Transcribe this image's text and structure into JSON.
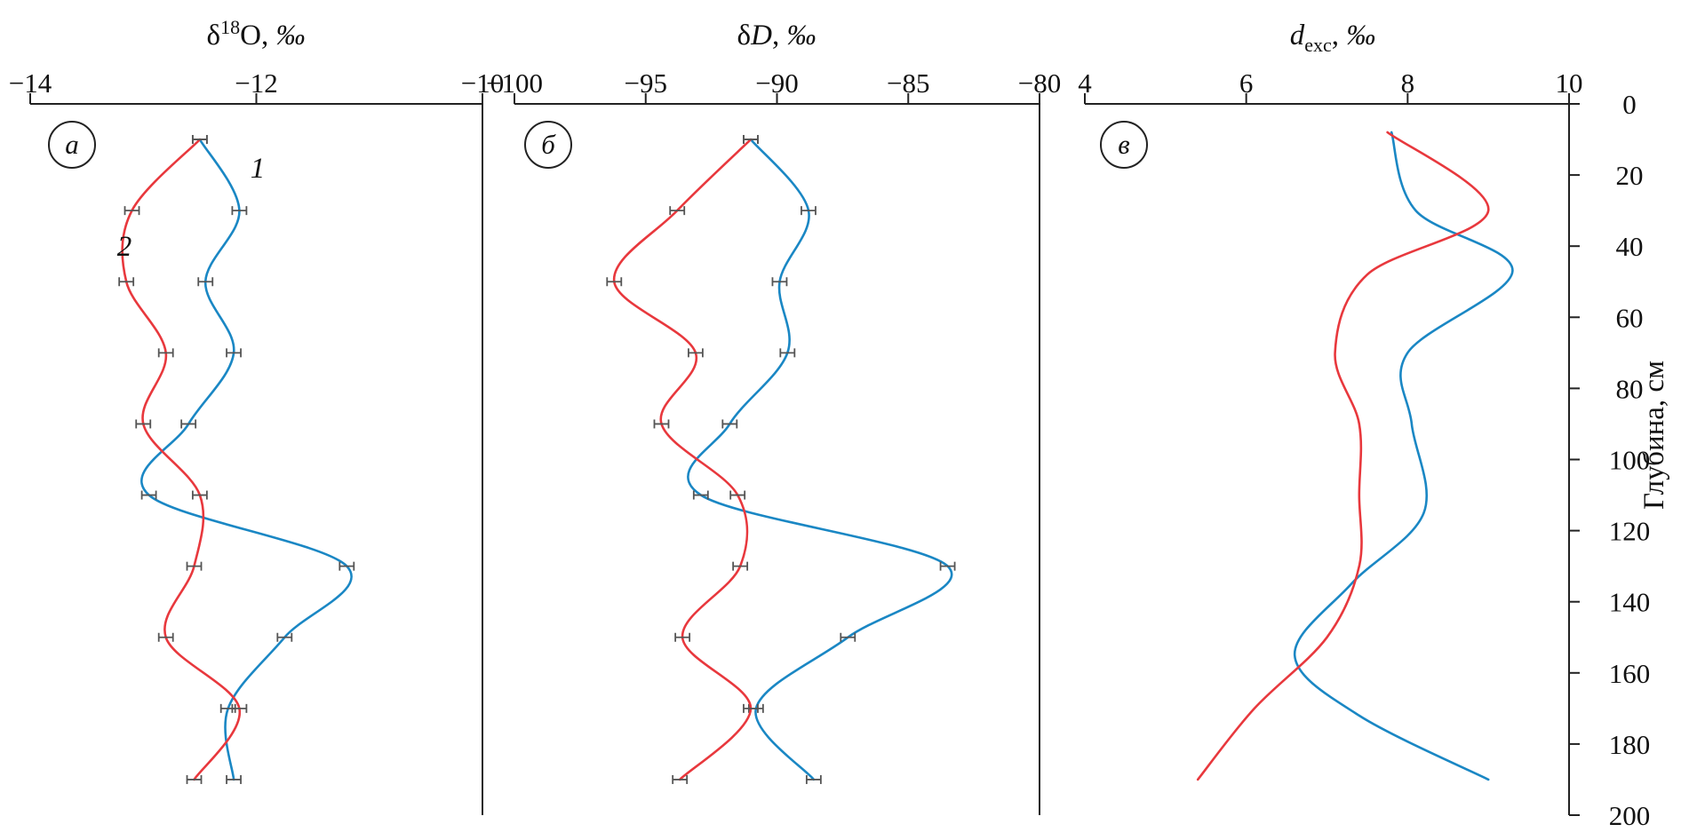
{
  "chart_data": [
    {
      "type": "line",
      "panel_label": "а",
      "xlabel_main": "δ",
      "xlabel_sup": "18",
      "xlabel_rest": "O, ",
      "xlabel_unit": "‰",
      "xlim": [
        -14,
        -10
      ],
      "xticks": [
        -14,
        -12,
        -10
      ],
      "xtick_labels": [
        "−14",
        "−12",
        "−10"
      ],
      "ylim": [
        0,
        200
      ],
      "grid": false,
      "series": [
        {
          "tag": "1",
          "color": "#1a87c4",
          "errorbars": true,
          "points": [
            {
              "x": -12.5,
              "y": 10
            },
            {
              "x": -12.15,
              "y": 30
            },
            {
              "x": -12.45,
              "y": 50
            },
            {
              "x": -12.2,
              "y": 70
            },
            {
              "x": -12.6,
              "y": 90
            },
            {
              "x": -12.95,
              "y": 110
            },
            {
              "x": -11.2,
              "y": 130
            },
            {
              "x": -11.75,
              "y": 150
            },
            {
              "x": -12.25,
              "y": 170
            },
            {
              "x": -12.2,
              "y": 190
            }
          ]
        },
        {
          "tag": "2",
          "color": "#e8383d",
          "errorbars": true,
          "points": [
            {
              "x": -12.5,
              "y": 10
            },
            {
              "x": -13.1,
              "y": 30
            },
            {
              "x": -13.15,
              "y": 50
            },
            {
              "x": -12.8,
              "y": 70
            },
            {
              "x": -13.0,
              "y": 90
            },
            {
              "x": -12.5,
              "y": 110
            },
            {
              "x": -12.55,
              "y": 130
            },
            {
              "x": -12.8,
              "y": 150
            },
            {
              "x": -12.15,
              "y": 170
            },
            {
              "x": -12.55,
              "y": 190
            }
          ]
        }
      ]
    },
    {
      "type": "line",
      "panel_label": "б",
      "xlabel_main": "δ",
      "xlabel_italic": "D",
      "xlabel_rest": ", ",
      "xlabel_unit": "‰",
      "xlim": [
        -100,
        -80
      ],
      "xticks": [
        -100,
        -95,
        -90,
        -85,
        -80
      ],
      "xtick_labels": [
        "−100",
        "−95",
        "−90",
        "−85",
        "−80"
      ],
      "ylim": [
        0,
        200
      ],
      "grid": false,
      "series": [
        {
          "color": "#1a87c4",
          "errorbars": true,
          "points": [
            {
              "x": -91.0,
              "y": 10
            },
            {
              "x": -88.8,
              "y": 30
            },
            {
              "x": -89.9,
              "y": 50
            },
            {
              "x": -89.6,
              "y": 70
            },
            {
              "x": -91.8,
              "y": 90
            },
            {
              "x": -92.9,
              "y": 110
            },
            {
              "x": -83.5,
              "y": 130
            },
            {
              "x": -87.3,
              "y": 150
            },
            {
              "x": -90.8,
              "y": 170
            },
            {
              "x": -88.6,
              "y": 190
            }
          ]
        },
        {
          "color": "#e8383d",
          "errorbars": true,
          "points": [
            {
              "x": -91.0,
              "y": 10
            },
            {
              "x": -93.8,
              "y": 30
            },
            {
              "x": -96.2,
              "y": 50
            },
            {
              "x": -93.1,
              "y": 70
            },
            {
              "x": -94.4,
              "y": 90
            },
            {
              "x": -91.5,
              "y": 110
            },
            {
              "x": -91.4,
              "y": 130
            },
            {
              "x": -93.6,
              "y": 150
            },
            {
              "x": -91.0,
              "y": 170
            },
            {
              "x": -93.7,
              "y": 190
            }
          ]
        }
      ]
    },
    {
      "type": "line",
      "panel_label": "в",
      "xlabel_italic": "d",
      "xlabel_sub": "exc",
      "xlabel_rest": ", ",
      "xlabel_unit": "‰",
      "xlim": [
        4,
        10
      ],
      "xticks": [
        4,
        6,
        8,
        10
      ],
      "xtick_labels": [
        "4",
        "6",
        "8",
        "10"
      ],
      "ylim": [
        0,
        200
      ],
      "yticks": [
        0,
        20,
        40,
        60,
        80,
        100,
        120,
        140,
        160,
        180,
        200
      ],
      "ytick_labels": [
        "0",
        "20",
        "40",
        "60",
        "80",
        "100",
        "120",
        "140",
        "160",
        "180",
        "200"
      ],
      "ylabel": "Глубина, см",
      "grid": false,
      "series": [
        {
          "color": "#1a87c4",
          "errorbars": false,
          "points": [
            {
              "x": 7.8,
              "y": 8
            },
            {
              "x": 8.1,
              "y": 30
            },
            {
              "x": 9.3,
              "y": 47
            },
            {
              "x": 8.0,
              "y": 70
            },
            {
              "x": 8.05,
              "y": 90
            },
            {
              "x": 8.2,
              "y": 115
            },
            {
              "x": 7.3,
              "y": 135
            },
            {
              "x": 6.6,
              "y": 155
            },
            {
              "x": 7.4,
              "y": 172
            },
            {
              "x": 9.0,
              "y": 190
            }
          ]
        },
        {
          "color": "#e8383d",
          "errorbars": false,
          "points": [
            {
              "x": 7.75,
              "y": 8
            },
            {
              "x": 9.0,
              "y": 30
            },
            {
              "x": 7.5,
              "y": 48
            },
            {
              "x": 7.1,
              "y": 70
            },
            {
              "x": 7.4,
              "y": 90
            },
            {
              "x": 7.4,
              "y": 110
            },
            {
              "x": 7.4,
              "y": 130
            },
            {
              "x": 7.0,
              "y": 150
            },
            {
              "x": 6.1,
              "y": 170
            },
            {
              "x": 5.4,
              "y": 190
            }
          ]
        }
      ]
    }
  ]
}
